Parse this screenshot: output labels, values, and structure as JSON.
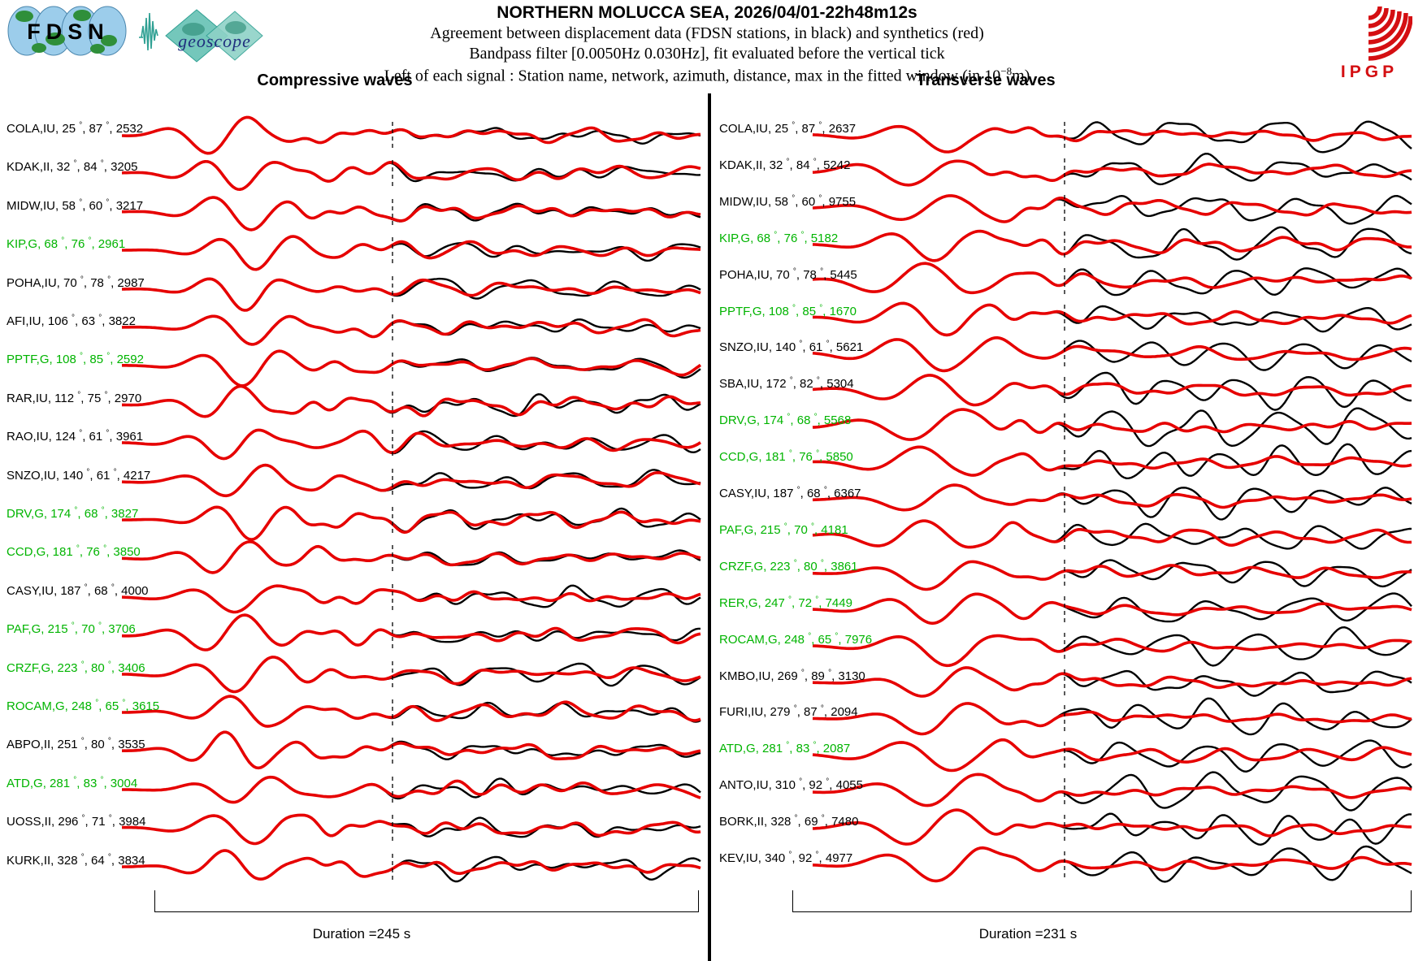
{
  "header": {
    "title": "NORTHERN MOLUCCA SEA, 2026/04/01-22h48m12s",
    "line2": "Agreement between displacement data (FDSN stations, in black) and synthetics (red)",
    "line3": "Bandpass filter [0.0050Hz 0.030Hz], fit evaluated before the vertical tick",
    "line4_prefix": "Left of each signal : Station name, network, azimuth, distance, max in the fitted window (in 10",
    "line4_sup": "−8",
    "line4_suffix": "m)"
  },
  "logos": {
    "fdsn": "FDSN",
    "geoscope": "geoscope",
    "ipgp": "IPGP"
  },
  "colors": {
    "synthetic_red": "#e60000",
    "data_black": "#000000",
    "station_green": "#00b400"
  },
  "chart_data": {
    "type": "line",
    "description": "Seismic waveform fit: observed displacement (black) vs synthetics (red) per station; vertical dashed tick marks end of fitted window",
    "legend": {
      "black": "FDSN stations displacement data",
      "red": "synthetics"
    },
    "panels": [
      {
        "title": "Compressive waves",
        "duration_label": "Duration =245 s",
        "duration_s": 245,
        "stations": [
          {
            "station": "COLA",
            "network": "IU",
            "azimuth": 25,
            "distance": 87,
            "max": 2532,
            "green": false
          },
          {
            "station": "KDAK",
            "network": "II",
            "azimuth": 32,
            "distance": 84,
            "max": 3205,
            "green": false
          },
          {
            "station": "MIDW",
            "network": "IU",
            "azimuth": 58,
            "distance": 60,
            "max": 3217,
            "green": false
          },
          {
            "station": "KIP",
            "network": "G",
            "azimuth": 68,
            "distance": 76,
            "max": 2961,
            "green": true
          },
          {
            "station": "POHA",
            "network": "IU",
            "azimuth": 70,
            "distance": 78,
            "max": 2987,
            "green": false
          },
          {
            "station": "AFI",
            "network": "IU",
            "azimuth": 106,
            "distance": 63,
            "max": 3822,
            "green": false
          },
          {
            "station": "PPTF",
            "network": "G",
            "azimuth": 108,
            "distance": 85,
            "max": 2592,
            "green": true
          },
          {
            "station": "RAR",
            "network": "IU",
            "azimuth": 112,
            "distance": 75,
            "max": 2970,
            "green": false
          },
          {
            "station": "RAO",
            "network": "IU",
            "azimuth": 124,
            "distance": 61,
            "max": 3961,
            "green": false
          },
          {
            "station": "SNZO",
            "network": "IU",
            "azimuth": 140,
            "distance": 61,
            "max": 4217,
            "green": false
          },
          {
            "station": "DRV",
            "network": "G",
            "azimuth": 174,
            "distance": 68,
            "max": 3827,
            "green": true
          },
          {
            "station": "CCD",
            "network": "G",
            "azimuth": 181,
            "distance": 76,
            "max": 3850,
            "green": true
          },
          {
            "station": "CASY",
            "network": "IU",
            "azimuth": 187,
            "distance": 68,
            "max": 4000,
            "green": false
          },
          {
            "station": "PAF",
            "network": "G",
            "azimuth": 215,
            "distance": 70,
            "max": 3706,
            "green": true
          },
          {
            "station": "CRZF",
            "network": "G",
            "azimuth": 223,
            "distance": 80,
            "max": 3406,
            "green": true
          },
          {
            "station": "ROCAM",
            "network": "G",
            "azimuth": 248,
            "distance": 65,
            "max": 3615,
            "green": true
          },
          {
            "station": "ABPO",
            "network": "II",
            "azimuth": 251,
            "distance": 80,
            "max": 3535,
            "green": false
          },
          {
            "station": "ATD",
            "network": "G",
            "azimuth": 281,
            "distance": 83,
            "max": 3004,
            "green": true
          },
          {
            "station": "UOSS",
            "network": "II",
            "azimuth": 296,
            "distance": 71,
            "max": 3984,
            "green": false
          },
          {
            "station": "KURK",
            "network": "II",
            "azimuth": 328,
            "distance": 64,
            "max": 3834,
            "green": false
          }
        ]
      },
      {
        "title": "Transverse waves",
        "duration_label": "Duration =231 s",
        "duration_s": 231,
        "stations": [
          {
            "station": "COLA",
            "network": "IU",
            "azimuth": 25,
            "distance": 87,
            "max": 2637,
            "green": false
          },
          {
            "station": "KDAK",
            "network": "II",
            "azimuth": 32,
            "distance": 84,
            "max": 5242,
            "green": false
          },
          {
            "station": "MIDW",
            "network": "IU",
            "azimuth": 58,
            "distance": 60,
            "max": 9755,
            "green": false
          },
          {
            "station": "KIP",
            "network": "G",
            "azimuth": 68,
            "distance": 76,
            "max": 5182,
            "green": true
          },
          {
            "station": "POHA",
            "network": "IU",
            "azimuth": 70,
            "distance": 78,
            "max": 5445,
            "green": false
          },
          {
            "station": "PPTF",
            "network": "G",
            "azimuth": 108,
            "distance": 85,
            "max": 1670,
            "green": true
          },
          {
            "station": "SNZO",
            "network": "IU",
            "azimuth": 140,
            "distance": 61,
            "max": 5621,
            "green": false
          },
          {
            "station": "SBA",
            "network": "IU",
            "azimuth": 172,
            "distance": 82,
            "max": 5304,
            "green": false
          },
          {
            "station": "DRV",
            "network": "G",
            "azimuth": 174,
            "distance": 68,
            "max": 5568,
            "green": true
          },
          {
            "station": "CCD",
            "network": "G",
            "azimuth": 181,
            "distance": 76,
            "max": 5850,
            "green": true
          },
          {
            "station": "CASY",
            "network": "IU",
            "azimuth": 187,
            "distance": 68,
            "max": 6367,
            "green": false
          },
          {
            "station": "PAF",
            "network": "G",
            "azimuth": 215,
            "distance": 70,
            "max": 4181,
            "green": true
          },
          {
            "station": "CRZF",
            "network": "G",
            "azimuth": 223,
            "distance": 80,
            "max": 3861,
            "green": true
          },
          {
            "station": "RER",
            "network": "G",
            "azimuth": 247,
            "distance": 72,
            "max": 7449,
            "green": true
          },
          {
            "station": "ROCAM",
            "network": "G",
            "azimuth": 248,
            "distance": 65,
            "max": 7976,
            "green": true
          },
          {
            "station": "KMBO",
            "network": "IU",
            "azimuth": 269,
            "distance": 89,
            "max": 3130,
            "green": false
          },
          {
            "station": "FURI",
            "network": "IU",
            "azimuth": 279,
            "distance": 87,
            "max": 2094,
            "green": false
          },
          {
            "station": "ATD",
            "network": "G",
            "azimuth": 281,
            "distance": 83,
            "max": 2087,
            "green": true
          },
          {
            "station": "ANTO",
            "network": "IU",
            "azimuth": 310,
            "distance": 92,
            "max": 4055,
            "green": false
          },
          {
            "station": "BORK",
            "network": "II",
            "azimuth": 328,
            "distance": 69,
            "max": 7480,
            "green": false
          },
          {
            "station": "KEV",
            "network": "IU",
            "azimuth": 340,
            "distance": 92,
            "max": 4977,
            "green": false
          }
        ]
      }
    ]
  }
}
